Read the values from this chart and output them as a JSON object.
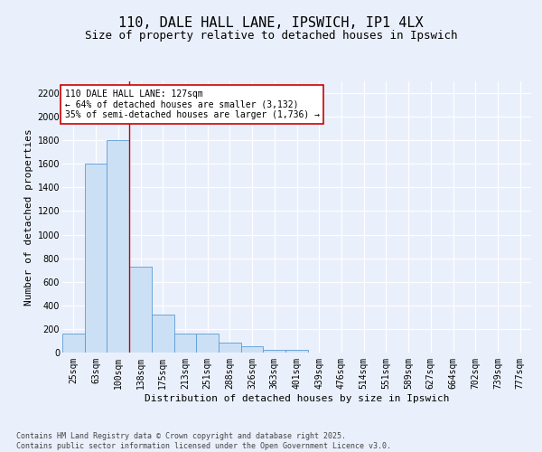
{
  "title1": "110, DALE HALL LANE, IPSWICH, IP1 4LX",
  "title2": "Size of property relative to detached houses in Ipswich",
  "xlabel": "Distribution of detached houses by size in Ipswich",
  "ylabel": "Number of detached properties",
  "categories": [
    "25sqm",
    "63sqm",
    "100sqm",
    "138sqm",
    "175sqm",
    "213sqm",
    "251sqm",
    "288sqm",
    "326sqm",
    "363sqm",
    "401sqm",
    "439sqm",
    "476sqm",
    "514sqm",
    "551sqm",
    "589sqm",
    "627sqm",
    "664sqm",
    "702sqm",
    "739sqm",
    "777sqm"
  ],
  "values": [
    160,
    1600,
    1800,
    725,
    320,
    160,
    160,
    85,
    50,
    25,
    20,
    0,
    0,
    0,
    0,
    0,
    0,
    0,
    0,
    0,
    0
  ],
  "bar_color": "#cce0f5",
  "bar_edge_color": "#5b9bd5",
  "vline_x": 2.5,
  "vline_color": "#cc0000",
  "annotation_text": "110 DALE HALL LANE: 127sqm\n← 64% of detached houses are smaller (3,132)\n35% of semi-detached houses are larger (1,736) →",
  "annotation_box_color": "#ffffff",
  "annotation_box_edge": "#cc0000",
  "ylim": [
    0,
    2300
  ],
  "yticks": [
    0,
    200,
    400,
    600,
    800,
    1000,
    1200,
    1400,
    1600,
    1800,
    2000,
    2200
  ],
  "background_color": "#eaf0fb",
  "grid_color": "#ffffff",
  "footer": "Contains HM Land Registry data © Crown copyright and database right 2025.\nContains public sector information licensed under the Open Government Licence v3.0.",
  "title_fontsize": 11,
  "subtitle_fontsize": 9,
  "axis_label_fontsize": 8,
  "tick_fontsize": 7,
  "annotation_fontsize": 7,
  "footer_fontsize": 6
}
